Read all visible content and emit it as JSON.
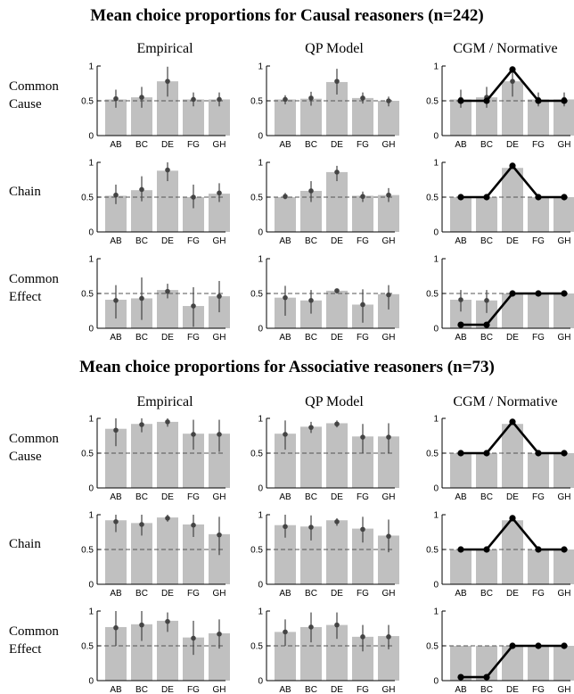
{
  "figure": {
    "ylim": [
      0,
      1
    ],
    "yticks": [
      0,
      0.5,
      1
    ],
    "yticklabels": [
      "0",
      "0.5",
      "1"
    ],
    "reference_line": 0.5,
    "grid": false
  },
  "chart_data": [
    {
      "type": "bar",
      "title": "Mean choice proportions for Causal reasoners (n=242)",
      "columns": [
        "Empirical",
        "QP Model",
        "CGM / Normative"
      ],
      "rows": [
        "Common\nCause",
        "Chain",
        "Common\nEffect"
      ],
      "categories": [
        "AB",
        "BC",
        "DE",
        "FG",
        "GH"
      ],
      "panels": [
        {
          "row": 0,
          "col": 0,
          "values": [
            0.52,
            0.55,
            0.78,
            0.52,
            0.52
          ],
          "points": [
            0.53,
            0.55,
            0.78,
            0.52,
            0.52
          ],
          "err_low": [
            0.4,
            0.4,
            0.56,
            0.42,
            0.42
          ],
          "err_high": [
            0.66,
            0.7,
            0.99,
            0.62,
            0.62
          ]
        },
        {
          "row": 0,
          "col": 1,
          "values": [
            0.52,
            0.53,
            0.77,
            0.54,
            0.5
          ],
          "points": [
            0.52,
            0.54,
            0.78,
            0.54,
            0.5
          ],
          "err_low": [
            0.45,
            0.43,
            0.59,
            0.46,
            0.42
          ],
          "err_high": [
            0.58,
            0.63,
            0.96,
            0.62,
            0.56
          ]
        },
        {
          "row": 0,
          "col": 2,
          "values": [
            0.52,
            0.55,
            0.78,
            0.52,
            0.52
          ],
          "points": [
            0.52,
            0.55,
            0.78,
            0.52,
            0.52
          ],
          "err_low": [
            0.4,
            0.4,
            0.56,
            0.42,
            0.42
          ],
          "err_high": [
            0.66,
            0.7,
            0.99,
            0.62,
            0.62
          ],
          "normative": [
            0.5,
            0.5,
            0.95,
            0.5,
            0.5
          ]
        },
        {
          "row": 1,
          "col": 0,
          "values": [
            0.52,
            0.6,
            0.88,
            0.5,
            0.55
          ],
          "points": [
            0.53,
            0.61,
            0.89,
            0.5,
            0.56
          ],
          "err_low": [
            0.4,
            0.44,
            0.73,
            0.34,
            0.43
          ],
          "err_high": [
            0.68,
            0.8,
            1.0,
            0.68,
            0.7
          ]
        },
        {
          "row": 1,
          "col": 1,
          "values": [
            0.5,
            0.59,
            0.86,
            0.52,
            0.53
          ],
          "points": [
            0.51,
            0.59,
            0.86,
            0.51,
            0.53
          ],
          "err_low": [
            0.47,
            0.43,
            0.73,
            0.43,
            0.43
          ],
          "err_high": [
            0.56,
            0.73,
            0.95,
            0.58,
            0.63
          ]
        },
        {
          "row": 1,
          "col": 2,
          "values": [
            0.5,
            0.5,
            0.92,
            0.5,
            0.5
          ],
          "points": [],
          "err_low": [],
          "err_high": [],
          "normative": [
            0.5,
            0.5,
            0.95,
            0.5,
            0.5
          ]
        },
        {
          "row": 2,
          "col": 0,
          "values": [
            0.41,
            0.43,
            0.55,
            0.32,
            0.46
          ],
          "points": [
            0.4,
            0.43,
            0.53,
            0.32,
            0.46
          ],
          "err_low": [
            0.14,
            0.12,
            0.43,
            0.02,
            0.23
          ],
          "err_high": [
            0.62,
            0.73,
            0.64,
            0.59,
            0.68
          ]
        },
        {
          "row": 2,
          "col": 1,
          "values": [
            0.44,
            0.4,
            0.54,
            0.34,
            0.49
          ],
          "points": [
            0.44,
            0.4,
            0.54,
            0.34,
            0.48
          ],
          "err_low": [
            0.18,
            0.21,
            0.5,
            0.08,
            0.27
          ],
          "err_high": [
            0.61,
            0.55,
            0.57,
            0.56,
            0.62
          ]
        },
        {
          "row": 2,
          "col": 2,
          "values": [
            0.41,
            0.4,
            0.5,
            0.5,
            0.5
          ],
          "points": [
            0.41,
            0.4
          ],
          "err_low": [
            0.24,
            0.22
          ],
          "err_high": [
            0.55,
            0.55
          ],
          "normative": [
            0.05,
            0.05,
            0.5,
            0.5,
            0.5
          ]
        }
      ]
    },
    {
      "type": "bar",
      "title": "Mean choice proportions for Associative reasoners (n=73)",
      "columns": [
        "Empirical",
        "QP Model",
        "CGM / Normative"
      ],
      "rows": [
        "Common\nCause",
        "Chain",
        "Common\nEffect"
      ],
      "categories": [
        "AB",
        "BC",
        "DE",
        "FG",
        "GH"
      ],
      "panels": [
        {
          "row": 0,
          "col": 0,
          "values": [
            0.85,
            0.92,
            0.95,
            0.78,
            0.78
          ],
          "points": [
            0.83,
            0.91,
            0.95,
            0.77,
            0.77
          ],
          "err_low": [
            0.6,
            0.8,
            0.88,
            0.55,
            0.52
          ],
          "err_high": [
            1.0,
            1.0,
            1.0,
            0.98,
            0.98
          ]
        },
        {
          "row": 0,
          "col": 1,
          "values": [
            0.78,
            0.88,
            0.93,
            0.74,
            0.74
          ],
          "points": [
            0.77,
            0.87,
            0.92,
            0.73,
            0.73
          ],
          "err_low": [
            0.55,
            0.79,
            0.87,
            0.5,
            0.5
          ],
          "err_high": [
            0.97,
            0.95,
            0.97,
            0.92,
            0.93
          ]
        },
        {
          "row": 0,
          "col": 2,
          "values": [
            0.5,
            0.5,
            0.92,
            0.5,
            0.5
          ],
          "points": [],
          "err_low": [],
          "err_high": [],
          "normative": [
            0.5,
            0.5,
            0.95,
            0.5,
            0.5
          ]
        },
        {
          "row": 1,
          "col": 0,
          "values": [
            0.92,
            0.88,
            0.96,
            0.86,
            0.72
          ],
          "points": [
            0.9,
            0.86,
            0.95,
            0.85,
            0.71
          ],
          "err_low": [
            0.75,
            0.7,
            0.9,
            0.68,
            0.42
          ],
          "err_high": [
            1.0,
            1.0,
            1.0,
            1.0,
            0.97
          ]
        },
        {
          "row": 1,
          "col": 1,
          "values": [
            0.85,
            0.83,
            0.92,
            0.8,
            0.7
          ],
          "points": [
            0.83,
            0.82,
            0.9,
            0.79,
            0.69
          ],
          "err_low": [
            0.67,
            0.63,
            0.84,
            0.6,
            0.46
          ],
          "err_high": [
            1.0,
            0.99,
            0.95,
            0.97,
            0.93
          ]
        },
        {
          "row": 1,
          "col": 2,
          "values": [
            0.5,
            0.5,
            0.92,
            0.5,
            0.5
          ],
          "points": [],
          "err_low": [],
          "err_high": [],
          "normative": [
            0.5,
            0.5,
            0.95,
            0.5,
            0.5
          ]
        },
        {
          "row": 2,
          "col": 0,
          "values": [
            0.77,
            0.81,
            0.86,
            0.62,
            0.68
          ],
          "points": [
            0.76,
            0.8,
            0.85,
            0.61,
            0.67
          ],
          "err_low": [
            0.5,
            0.57,
            0.7,
            0.37,
            0.46
          ],
          "err_high": [
            1.0,
            1.0,
            0.98,
            0.86,
            0.88
          ]
        },
        {
          "row": 2,
          "col": 1,
          "values": [
            0.7,
            0.77,
            0.8,
            0.63,
            0.64
          ],
          "points": [
            0.7,
            0.77,
            0.8,
            0.63,
            0.63
          ],
          "err_low": [
            0.5,
            0.55,
            0.6,
            0.42,
            0.45
          ],
          "err_high": [
            0.88,
            0.98,
            0.98,
            0.8,
            0.8
          ]
        },
        {
          "row": 2,
          "col": 2,
          "values": [
            0.5,
            0.5,
            0.5,
            0.5,
            0.5
          ],
          "points": [],
          "err_low": [],
          "err_high": [],
          "normative": [
            0.05,
            0.05,
            0.5,
            0.5,
            0.5
          ]
        }
      ]
    }
  ]
}
